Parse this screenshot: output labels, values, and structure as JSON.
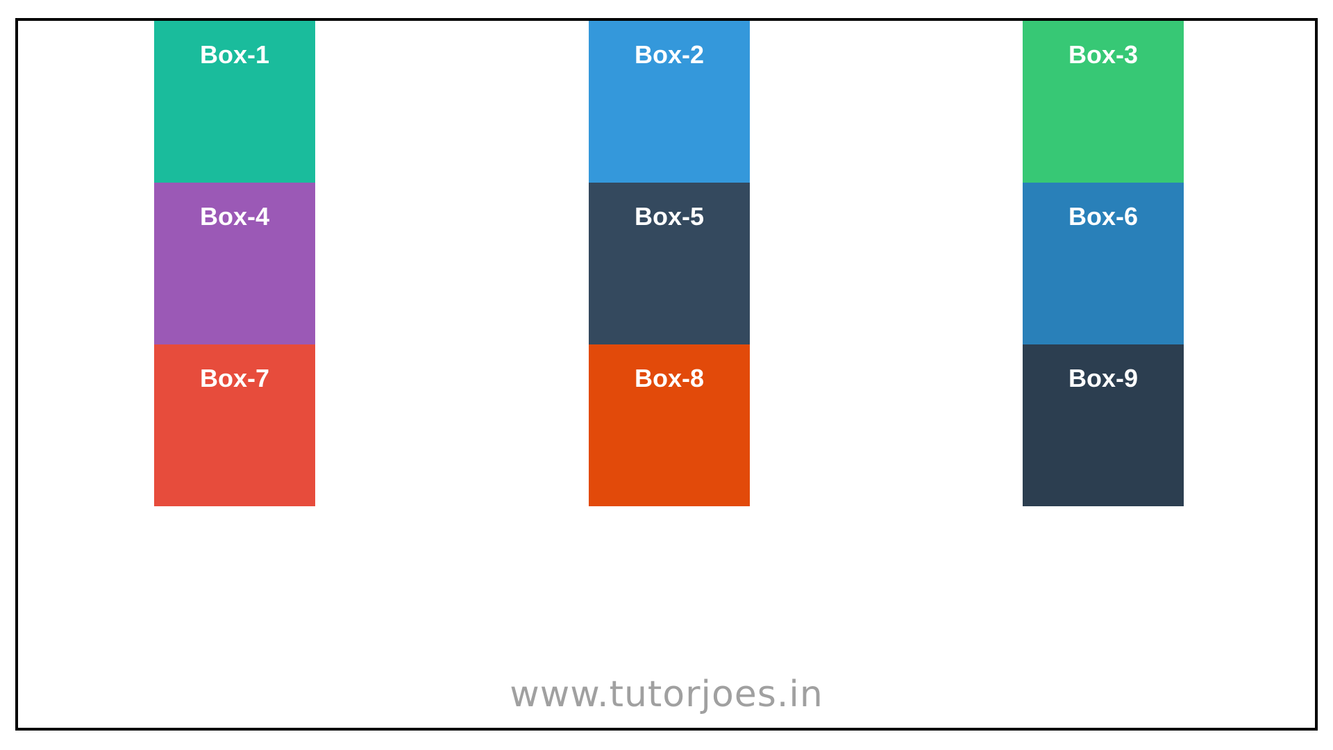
{
  "boxes": [
    {
      "label": "Box-1",
      "color": "#1abc9c"
    },
    {
      "label": "Box-2",
      "color": "#3498db"
    },
    {
      "label": "Box-3",
      "color": "#37c875"
    },
    {
      "label": "Box-4",
      "color": "#9b59b6"
    },
    {
      "label": "Box-5",
      "color": "#34495e"
    },
    {
      "label": "Box-6",
      "color": "#2980b9"
    },
    {
      "label": "Box-7",
      "color": "#e74c3c"
    },
    {
      "label": "Box-8",
      "color": "#e24a0a"
    },
    {
      "label": "Box-9",
      "color": "#2c3e50"
    }
  ],
  "footer": {
    "watermark": "www.tutorjoes.in"
  }
}
